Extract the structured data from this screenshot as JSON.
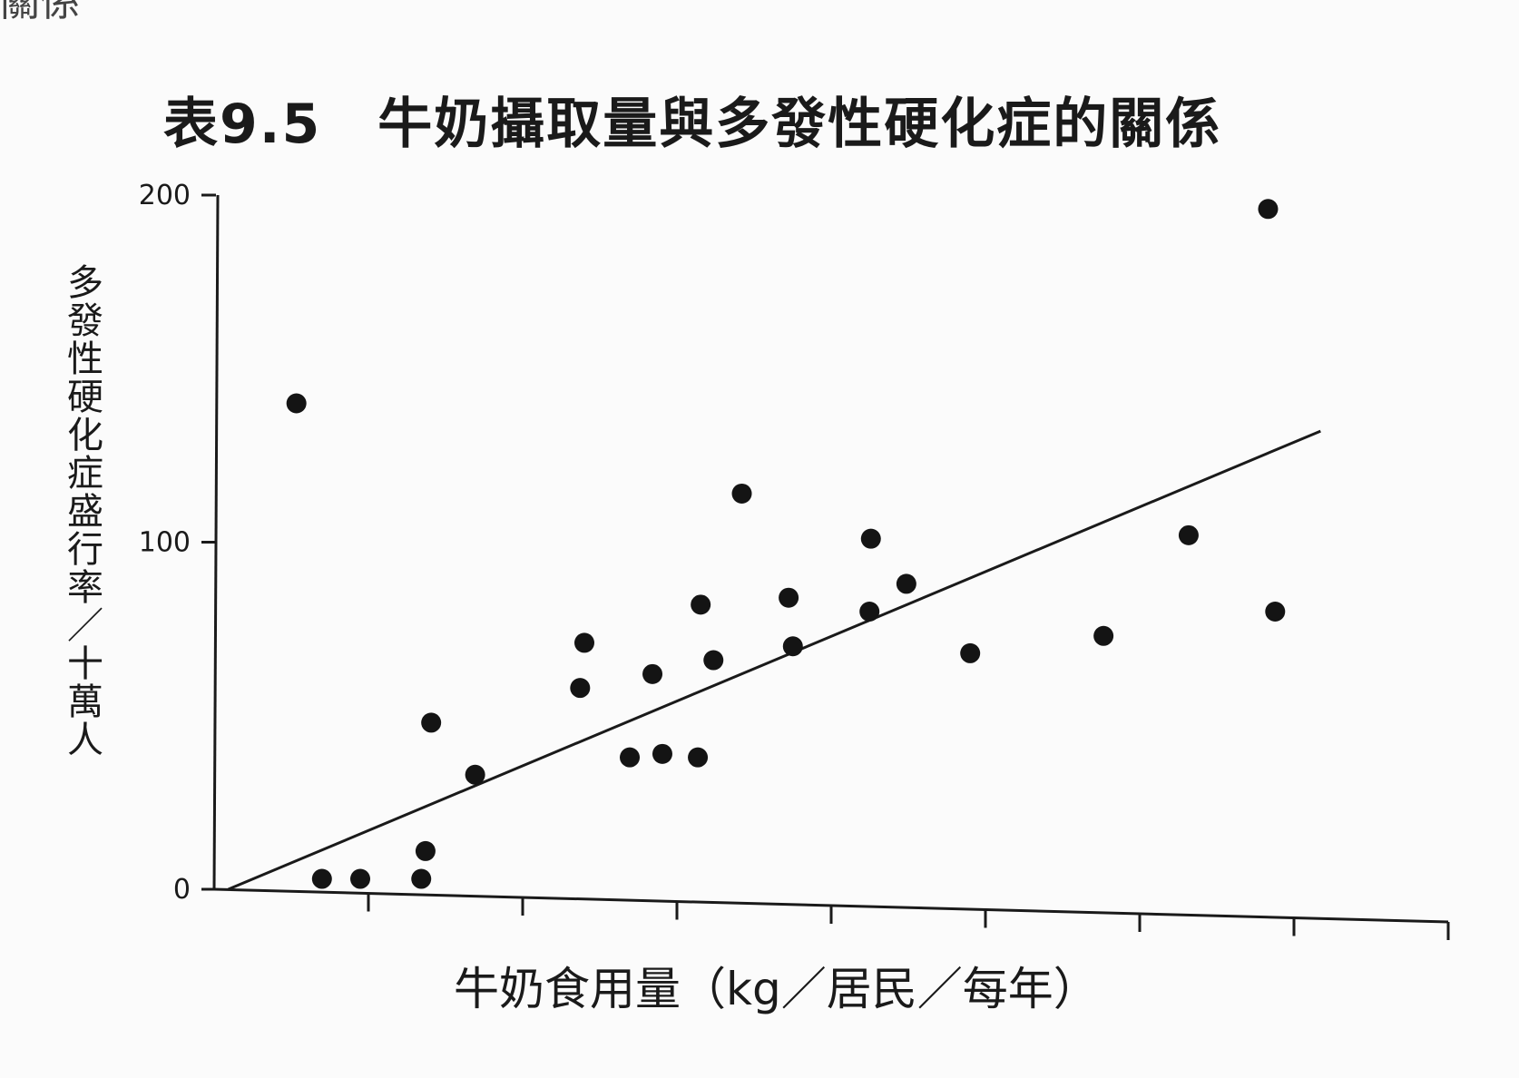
{
  "page_corner_text": "關係",
  "chart_data": {
    "type": "scatter",
    "title": "表9.5　牛奶攝取量與多發性硬化症的關係",
    "xlabel": "牛奶食用量（kg／居民／每年）",
    "ylabel": "多發性硬化症盛行率／十萬人",
    "y_ticks": [
      "0",
      "100",
      "200"
    ],
    "ylim": [
      0,
      200
    ],
    "xlim": [
      0,
      8.7
    ],
    "x_tick_count": 8,
    "grid": false,
    "points": [
      {
        "x": 0.58,
        "y": 140
      },
      {
        "x": 0.76,
        "y": 3
      },
      {
        "x": 1.03,
        "y": 3
      },
      {
        "x": 1.46,
        "y": 3
      },
      {
        "x": 1.49,
        "y": 11
      },
      {
        "x": 1.53,
        "y": 48
      },
      {
        "x": 1.84,
        "y": 33
      },
      {
        "x": 2.58,
        "y": 58
      },
      {
        "x": 2.61,
        "y": 71
      },
      {
        "x": 2.93,
        "y": 38
      },
      {
        "x": 3.09,
        "y": 62
      },
      {
        "x": 3.16,
        "y": 39
      },
      {
        "x": 3.41,
        "y": 38
      },
      {
        "x": 3.43,
        "y": 82
      },
      {
        "x": 3.52,
        "y": 66
      },
      {
        "x": 3.72,
        "y": 114
      },
      {
        "x": 4.05,
        "y": 84
      },
      {
        "x": 4.08,
        "y": 70
      },
      {
        "x": 4.62,
        "y": 80
      },
      {
        "x": 4.63,
        "y": 101
      },
      {
        "x": 4.88,
        "y": 88
      },
      {
        "x": 5.33,
        "y": 68
      },
      {
        "x": 6.27,
        "y": 73
      },
      {
        "x": 6.87,
        "y": 102
      },
      {
        "x": 7.43,
        "y": 196
      },
      {
        "x": 7.48,
        "y": 80
      }
    ],
    "trendline": {
      "x": [
        0.1,
        7.8
      ],
      "y": [
        0,
        132
      ]
    },
    "colors": {
      "marker": "#141414",
      "line": "#1a1a1a",
      "axis": "#1a1a1a"
    }
  }
}
